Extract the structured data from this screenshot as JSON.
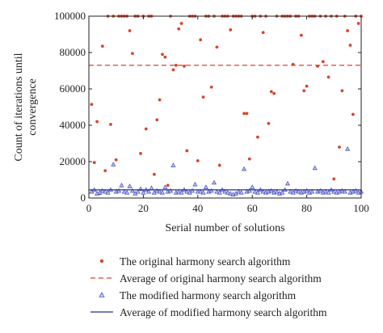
{
  "chart_data": {
    "type": "scatter",
    "xlabel": "Serial number of solutions",
    "ylabel_lines": [
      "Count of iterations until",
      "convergence"
    ],
    "xlim": [
      0,
      100
    ],
    "ylim": [
      0,
      100000
    ],
    "xticks": [
      "0",
      "20",
      "40",
      "60",
      "80",
      "100"
    ],
    "xtick_values": [
      0,
      20,
      40,
      60,
      80,
      100
    ],
    "yticks": [
      "0",
      "20000",
      "40000",
      "60000",
      "80000",
      "100000"
    ],
    "ytick_values": [
      0,
      20000,
      40000,
      60000,
      80000,
      100000
    ],
    "grid": false,
    "legend_position": "bottom",
    "series": [
      {
        "name": "The original harmony search algorithm",
        "kind": "points",
        "marker": "circle",
        "color": "#d9432b",
        "x": [
          1,
          2,
          3,
          4,
          5,
          6,
          7,
          8,
          9,
          10,
          11,
          12,
          13,
          14,
          15,
          16,
          17,
          18,
          19,
          20,
          21,
          22,
          23,
          24,
          25,
          26,
          27,
          28,
          29,
          30,
          31,
          32,
          33,
          34,
          35,
          36,
          37,
          38,
          39,
          40,
          41,
          42,
          43,
          44,
          45,
          46,
          47,
          48,
          49,
          50,
          51,
          52,
          53,
          54,
          55,
          56,
          57,
          58,
          59,
          60,
          61,
          62,
          63,
          64,
          65,
          66,
          67,
          68,
          69,
          70,
          71,
          72,
          73,
          74,
          75,
          76,
          77,
          78,
          79,
          80,
          81,
          82,
          83,
          84,
          85,
          86,
          87,
          88,
          89,
          90,
          91,
          92,
          93,
          94,
          95,
          96,
          97,
          98,
          99,
          100
        ],
        "y": [
          51500,
          19500,
          42000,
          2500,
          83500,
          15000,
          100000,
          40500,
          100000,
          21000,
          100000,
          100000,
          100000,
          100000,
          92000,
          79500,
          100000,
          100000,
          24500,
          100000,
          38000,
          100000,
          100000,
          13000,
          43000,
          54000,
          79000,
          77500,
          7000,
          100000,
          70500,
          73000,
          93000,
          96000,
          72500,
          26000,
          100000,
          100000,
          100000,
          20500,
          87000,
          55500,
          100000,
          100000,
          61000,
          100000,
          83000,
          18000,
          100000,
          100000,
          100000,
          92500,
          100000,
          100000,
          100000,
          100000,
          46500,
          46500,
          21500,
          100000,
          100000,
          33500,
          100000,
          91000,
          100000,
          41000,
          58500,
          57500,
          100000,
          2500,
          100000,
          100000,
          100000,
          100000,
          73500,
          100000,
          100000,
          89500,
          59000,
          61500,
          100000,
          100000,
          100000,
          72500,
          100000,
          75000,
          100000,
          66500,
          100000,
          10500,
          100000,
          28000,
          59000,
          100000,
          92000,
          84000,
          46000,
          100000,
          96000,
          100000
        ]
      },
      {
        "name": "Average of original harmony search algorithm",
        "kind": "hline",
        "style": "dashed",
        "color": "#d9432b",
        "y": 73000
      },
      {
        "name": "The modified harmony search algorithm",
        "kind": "points",
        "marker": "triangle",
        "color": "#4a55c8",
        "x": [
          1,
          2,
          3,
          4,
          5,
          6,
          7,
          8,
          9,
          10,
          11,
          12,
          13,
          14,
          15,
          16,
          17,
          18,
          19,
          20,
          21,
          22,
          23,
          24,
          25,
          26,
          27,
          28,
          29,
          30,
          31,
          32,
          33,
          34,
          35,
          36,
          37,
          38,
          39,
          40,
          41,
          42,
          43,
          44,
          45,
          46,
          47,
          48,
          49,
          50,
          51,
          52,
          53,
          54,
          55,
          56,
          57,
          58,
          59,
          60,
          61,
          62,
          63,
          64,
          65,
          66,
          67,
          68,
          69,
          70,
          71,
          72,
          73,
          74,
          75,
          76,
          77,
          78,
          79,
          80,
          81,
          82,
          83,
          84,
          85,
          86,
          87,
          88,
          89,
          90,
          91,
          92,
          93,
          94,
          95,
          96,
          97,
          98,
          99,
          100
        ],
        "y": [
          3500,
          4500,
          2500,
          3000,
          4000,
          3500,
          3000,
          4500,
          18500,
          3500,
          4000,
          7000,
          3500,
          3000,
          6500,
          4000,
          2500,
          3500,
          5000,
          3000,
          4500,
          3500,
          5500,
          3000,
          4000,
          3500,
          3000,
          6000,
          3500,
          4000,
          18000,
          3000,
          3500,
          3000,
          4500,
          3500,
          3000,
          4000,
          7500,
          3500,
          3500,
          3000,
          6000,
          3500,
          4000,
          8500,
          3500,
          3000,
          4500,
          3500,
          3000,
          2500,
          2000,
          2500,
          3500,
          3000,
          16000,
          3500,
          4000,
          6000,
          3500,
          3000,
          4500,
          3500,
          3000,
          3500,
          4000,
          3000,
          3500,
          2500,
          3000,
          4500,
          8000,
          3500,
          3000,
          4000,
          3500,
          3000,
          3500,
          4000,
          3000,
          3500,
          16500,
          3500,
          4000,
          3000,
          3500,
          3000,
          4500,
          3500,
          3000,
          3500,
          4000,
          3500,
          27000,
          3000,
          3500,
          4000,
          3000,
          3500
        ]
      },
      {
        "name": "Average of modified harmony search algorithm",
        "kind": "hline",
        "style": "solid",
        "color": "#2b2f8a",
        "y": 4500
      }
    ]
  }
}
